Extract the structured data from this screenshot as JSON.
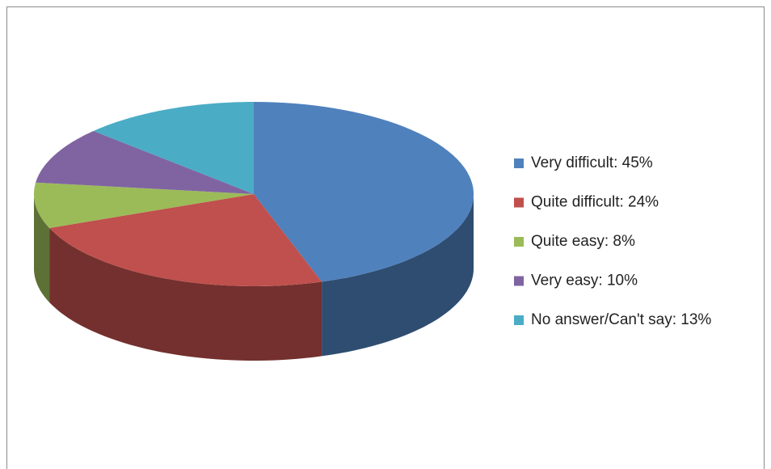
{
  "chart_data": {
    "type": "pie",
    "categories": [
      "Very difficult: 45%",
      "Quite difficult: 24%",
      "Quite easy: 8%",
      "Very easy: 10%",
      "No answer/Can't say: 13%"
    ],
    "values": [
      45,
      24,
      8,
      10,
      13
    ],
    "colors": [
      "#4f81bd",
      "#c0504d",
      "#9bbb59",
      "#8064a2",
      "#4bacc6"
    ],
    "legend": "right"
  }
}
